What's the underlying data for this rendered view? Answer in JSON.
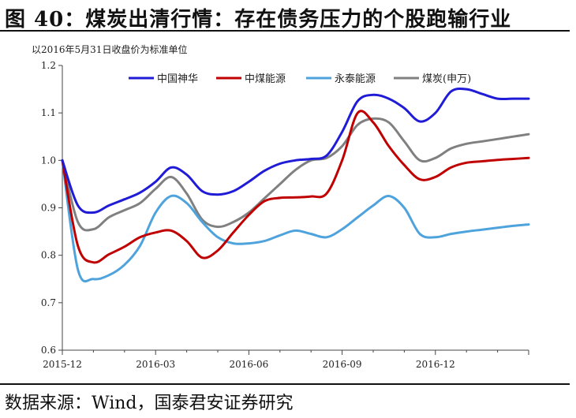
{
  "header": {
    "title": "图 40：煤炭出清行情：存在债务压力的个股跑输行业"
  },
  "footer": {
    "source": "数据来源：Wind，国泰君安证券研究"
  },
  "chart_data": {
    "type": "line",
    "note": "以2016年5月31日收盘价为标准单位",
    "ylim": [
      0.6,
      1.2
    ],
    "yticks": [
      "0.6",
      "0.7",
      "0.8",
      "0.9",
      "1.0",
      "1.1",
      "1.2"
    ],
    "xticks": [
      "2015-12",
      "2016-03",
      "2016-06",
      "2016-09",
      "2016-12"
    ],
    "x": [
      0,
      0.5,
      1,
      1.5,
      2,
      2.5,
      3,
      3.5,
      4,
      4.5,
      5,
      5.5,
      6,
      6.5,
      7,
      7.5,
      8,
      8.5,
      9,
      9.5,
      10,
      10.5,
      11,
      11.5,
      12,
      12.5,
      13,
      13.5,
      14,
      14.5,
      15
    ],
    "series": [
      {
        "name": "中国神华",
        "color": "#1f1bd6",
        "values": [
          1.0,
          0.905,
          0.89,
          0.905,
          0.918,
          0.932,
          0.955,
          0.985,
          0.97,
          0.935,
          0.928,
          0.935,
          0.955,
          0.978,
          0.993,
          1.0,
          1.003,
          1.01,
          1.06,
          1.125,
          1.138,
          1.13,
          1.11,
          1.082,
          1.1,
          1.145,
          1.15,
          1.14,
          1.13,
          1.13,
          1.13
        ]
      },
      {
        "name": "中煤能源",
        "color": "#c00000",
        "values": [
          1.0,
          0.82,
          0.785,
          0.802,
          0.818,
          0.838,
          0.848,
          0.852,
          0.83,
          0.795,
          0.81,
          0.848,
          0.885,
          0.914,
          0.921,
          0.922,
          0.924,
          0.93,
          1.0,
          1.1,
          1.08,
          1.03,
          0.99,
          0.96,
          0.965,
          0.985,
          0.995,
          0.998,
          1.001,
          1.003,
          1.005
        ]
      },
      {
        "name": "永泰能源",
        "color": "#4ea3dd",
        "values": [
          1.0,
          0.77,
          0.75,
          0.758,
          0.78,
          0.82,
          0.89,
          0.925,
          0.91,
          0.87,
          0.838,
          0.825,
          0.825,
          0.83,
          0.842,
          0.852,
          0.845,
          0.838,
          0.855,
          0.88,
          0.905,
          0.925,
          0.9,
          0.845,
          0.838,
          0.845,
          0.85,
          0.854,
          0.858,
          0.862,
          0.865
        ]
      },
      {
        "name": "煤炭(申万)",
        "color": "#808080",
        "values": [
          1.0,
          0.87,
          0.855,
          0.88,
          0.895,
          0.91,
          0.94,
          0.965,
          0.93,
          0.875,
          0.86,
          0.87,
          0.89,
          0.92,
          0.95,
          0.98,
          1.0,
          1.005,
          1.03,
          1.075,
          1.088,
          1.08,
          1.04,
          1.0,
          1.005,
          1.025,
          1.035,
          1.04,
          1.045,
          1.05,
          1.055
        ]
      }
    ]
  }
}
